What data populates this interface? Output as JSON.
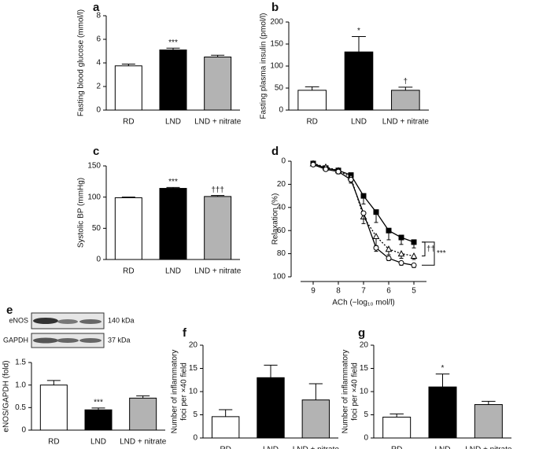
{
  "chart_data": [
    {
      "type": "bar",
      "label": "a",
      "ylabel": "Fasting blood glucose (mmol/l)",
      "categories": [
        "RD",
        "LND",
        "LND + nitrate"
      ],
      "values": [
        3.75,
        5.1,
        4.5
      ],
      "errors": [
        0.15,
        0.15,
        0.15
      ],
      "colors": [
        "#ffffff",
        "#000000",
        "#b3b3b3"
      ],
      "annotations": [
        null,
        "***",
        null
      ],
      "ylim": [
        0,
        8
      ],
      "yticks": [
        0,
        2,
        4,
        6,
        8
      ]
    },
    {
      "type": "bar",
      "label": "b",
      "ylabel": "Fasting plasma insulin (pmol/l)",
      "categories": [
        "RD",
        "LND",
        "LND + nitrate"
      ],
      "values": [
        45,
        132,
        45
      ],
      "errors": [
        8,
        35,
        7
      ],
      "colors": [
        "#ffffff",
        "#000000",
        "#b3b3b3"
      ],
      "annotations": [
        null,
        "*",
        "†"
      ],
      "ylim": [
        0,
        200
      ],
      "yticks": [
        0,
        50,
        100,
        150,
        200
      ]
    },
    {
      "type": "bar",
      "label": "c",
      "ylabel": "Systolic BP (mmHg)",
      "categories": [
        "RD",
        "LND",
        "LND + nitrate"
      ],
      "values": [
        99,
        114,
        101
      ],
      "errors": [
        1,
        1.5,
        1.5
      ],
      "colors": [
        "#ffffff",
        "#000000",
        "#b3b3b3"
      ],
      "annotations": [
        null,
        "***",
        "†††"
      ],
      "ylim": [
        0,
        150
      ],
      "yticks": [
        0,
        50,
        100,
        150
      ]
    },
    {
      "type": "line",
      "label": "d",
      "ylabel": "Relaxation (%)",
      "xlabel": "ACh (−log₁₀ mol/l)",
      "x": [
        9,
        8.5,
        8,
        7.5,
        7,
        6.5,
        6,
        5.5,
        5
      ],
      "series": [
        {
          "color": "#000000",
          "marker": "square-filled",
          "line_style": "solid",
          "values": [
            2,
            6,
            8,
            12,
            30,
            44,
            60,
            66,
            70
          ],
          "errors": [
            1,
            1,
            2,
            4,
            7,
            9,
            8,
            6,
            5
          ]
        },
        {
          "color": "#000000",
          "marker": "triangle-open",
          "line_style": "dotted",
          "values": [
            2,
            5,
            8,
            14,
            48,
            65,
            76,
            80,
            82
          ],
          "errors": [
            1,
            1,
            2,
            4,
            6,
            8,
            5,
            4,
            3
          ]
        },
        {
          "color": "#000000",
          "marker": "circle-open",
          "line_style": "solid",
          "values": [
            3,
            7,
            9,
            16,
            45,
            75,
            84,
            88,
            90
          ],
          "errors": [
            1,
            1,
            2,
            3,
            5,
            3,
            2,
            2,
            2
          ]
        }
      ],
      "annotations": [
        "††",
        "***"
      ],
      "xlim": [
        9.5,
        4.5
      ],
      "xticks": [
        9,
        8,
        7,
        6,
        5
      ],
      "ylim": [
        100,
        0
      ],
      "yticks": [
        0,
        20,
        40,
        60,
        80,
        100
      ]
    },
    {
      "type": "bar",
      "label": "e",
      "ylabel": "eNOS/GAPDH (fold)",
      "blot": [
        {
          "protein": "eNOS",
          "size": "140 kDa"
        },
        {
          "protein": "GAPDH",
          "size": "37 kDa"
        }
      ],
      "categories": [
        "RD",
        "LND",
        "LND + nitrate"
      ],
      "values": [
        1.0,
        0.45,
        0.71
      ],
      "errors": [
        0.1,
        0.04,
        0.05
      ],
      "colors": [
        "#ffffff",
        "#000000",
        "#b3b3b3"
      ],
      "annotations": [
        null,
        "***",
        null
      ],
      "ylim": [
        0,
        1.5
      ],
      "yticks": [
        0,
        0.5,
        {
          "value": 1,
          "label": "1.0"
        },
        1.5
      ]
    },
    {
      "type": "bar",
      "label": "f",
      "ylabel": [
        "Number of inflammatory",
        "foci per ×40 field"
      ],
      "categories": [
        "RD",
        "LND",
        "LND + nitrate"
      ],
      "values": [
        4.6,
        13,
        8.2
      ],
      "errors": [
        1.5,
        2.7,
        3.5
      ],
      "colors": [
        "#ffffff",
        "#000000",
        "#b3b3b3"
      ],
      "ylim": [
        0,
        20
      ],
      "yticks": [
        0,
        5,
        10,
        15,
        20
      ]
    },
    {
      "type": "bar",
      "label": "g",
      "ylabel": [
        "Number of inflammatory",
        "foci per ×40 field"
      ],
      "categories": [
        "RD",
        "LND",
        "LND + nitrate"
      ],
      "values": [
        4.5,
        11,
        7.2
      ],
      "errors": [
        0.7,
        2.8,
        0.7
      ],
      "colors": [
        "#ffffff",
        "#000000",
        "#b3b3b3"
      ],
      "annotations": [
        null,
        "*",
        null
      ],
      "ylim": [
        0,
        20
      ],
      "yticks": [
        0,
        5,
        10,
        15,
        20
      ]
    }
  ]
}
